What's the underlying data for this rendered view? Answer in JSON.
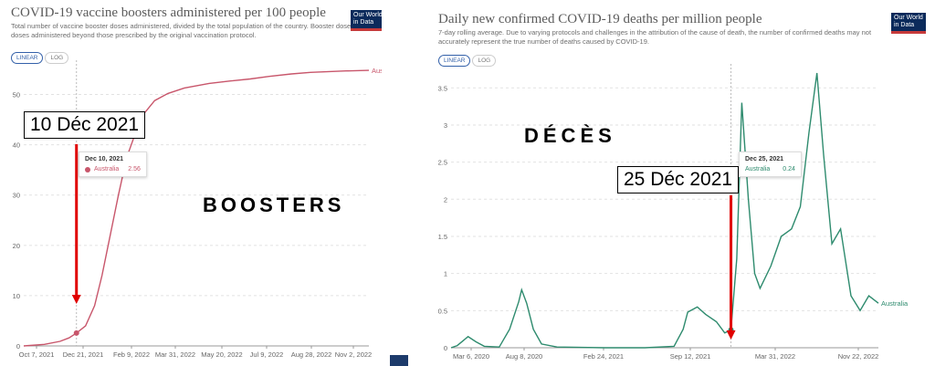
{
  "left": {
    "title": "COVID-19 vaccine boosters administered per 100 people",
    "subtitle": "Total number of vaccine booster doses administered, divided by the total population of the country. Booster doses are doses administered beyond those prescribed by the original vaccination protocol.",
    "logo": "Our World\nin Data",
    "toggle": [
      "LINEAR",
      "LOG"
    ],
    "annotation": "10 Déc 2021",
    "label": "BOOSTERS",
    "tooltip": {
      "date": "Dec 10, 2021",
      "series": "Australia",
      "value": "2.56"
    },
    "series_label": "Australia",
    "colors": {
      "line": "#c8566b",
      "arrow": "#e00000"
    }
  },
  "right": {
    "title": "Daily new confirmed COVID-19 deaths per million people",
    "subtitle": "7-day rolling average. Due to varying protocols and challenges in the attribution of the cause of death, the number of confirmed deaths may not accurately represent the true number of deaths caused by COVID-19.",
    "logo": "Our World\nin Data",
    "toggle": [
      "LINEAR",
      "LOG"
    ],
    "annotation": "25 Déc 2021",
    "label": "DÉCÈS",
    "tooltip": {
      "date": "Dec 25, 2021",
      "series": "Australia",
      "value": "0.24"
    },
    "series_label": "Australia",
    "colors": {
      "line": "#2e8b6e",
      "arrow": "#e00000"
    }
  },
  "chart_data": [
    {
      "type": "line",
      "title": "COVID-19 vaccine boosters administered per 100 people",
      "x_ticks": [
        "Oct 7, 2021",
        "Dec 21, 2021",
        "Feb 9, 2022",
        "Mar 31, 2022",
        "May 20, 2022",
        "Jul 9, 2022",
        "Aug 28, 2022",
        "Nov 2, 2022"
      ],
      "y_ticks": [
        "0",
        "10",
        "20",
        "30",
        "40",
        "50"
      ],
      "ylim": [
        0,
        55
      ],
      "series": [
        {
          "name": "Australia",
          "x": [
            "2021-10-07",
            "2021-11-01",
            "2021-11-20",
            "2021-12-01",
            "2021-12-10",
            "2021-12-21",
            "2022-01-01",
            "2022-01-10",
            "2022-01-20",
            "2022-01-30",
            "2022-02-09",
            "2022-02-20",
            "2022-03-01",
            "2022-03-15",
            "2022-03-31",
            "2022-04-20",
            "2022-05-20",
            "2022-06-15",
            "2022-07-09",
            "2022-08-01",
            "2022-08-28",
            "2022-09-20",
            "2022-11-02",
            "2022-11-30"
          ],
          "y": [
            0,
            0.3,
            0.9,
            1.6,
            2.56,
            4.0,
            8.0,
            14.0,
            22.0,
            30.0,
            37.5,
            42.5,
            46.0,
            48.8,
            50.2,
            51.3,
            52.2,
            52.7,
            53.1,
            53.6,
            54.1,
            54.4,
            54.7,
            54.8
          ]
        }
      ],
      "annotations": [
        {
          "x": "2021-12-10",
          "text": "10 Déc 2021"
        }
      ]
    },
    {
      "type": "line",
      "title": "Daily new confirmed COVID-19 deaths per million people",
      "x_ticks": [
        "Mar 6, 2020",
        "Aug 8, 2020",
        "Feb 24, 2021",
        "Sep 12, 2021",
        "Mar 31, 2022",
        "Nov 22, 2022"
      ],
      "y_ticks": [
        "0",
        "0.5",
        "1",
        "1.5",
        "2",
        "2.5",
        "3",
        "3.5"
      ],
      "ylim": [
        0,
        3.7
      ],
      "series": [
        {
          "name": "Australia",
          "x": [
            "2020-02-20",
            "2020-03-06",
            "2020-04-01",
            "2020-04-20",
            "2020-05-10",
            "2020-06-15",
            "2020-07-10",
            "2020-08-01",
            "2020-08-08",
            "2020-08-20",
            "2020-09-05",
            "2020-09-25",
            "2020-11-01",
            "2021-02-24",
            "2021-06-01",
            "2021-08-10",
            "2021-09-01",
            "2021-09-12",
            "2021-10-05",
            "2021-10-25",
            "2021-11-20",
            "2021-12-10",
            "2021-12-25",
            "2022-01-08",
            "2022-01-20",
            "2022-02-05",
            "2022-02-20",
            "2022-03-05",
            "2022-03-31",
            "2022-04-25",
            "2022-05-20",
            "2022-06-10",
            "2022-07-01",
            "2022-07-20",
            "2022-08-05",
            "2022-08-25",
            "2022-09-15",
            "2022-10-10",
            "2022-11-01",
            "2022-11-22",
            "2022-12-15"
          ],
          "y": [
            0,
            0.03,
            0.15,
            0.08,
            0.02,
            0.01,
            0.25,
            0.62,
            0.78,
            0.6,
            0.25,
            0.05,
            0.01,
            0.0,
            0.0,
            0.02,
            0.25,
            0.48,
            0.55,
            0.45,
            0.35,
            0.2,
            0.24,
            1.2,
            3.3,
            2.0,
            1.0,
            0.8,
            1.1,
            1.5,
            1.6,
            1.9,
            2.9,
            3.7,
            2.6,
            1.4,
            1.6,
            0.7,
            0.5,
            0.7,
            0.6
          ]
        }
      ],
      "annotations": [
        {
          "x": "2021-12-25",
          "text": "25 Déc 2021"
        }
      ]
    }
  ]
}
